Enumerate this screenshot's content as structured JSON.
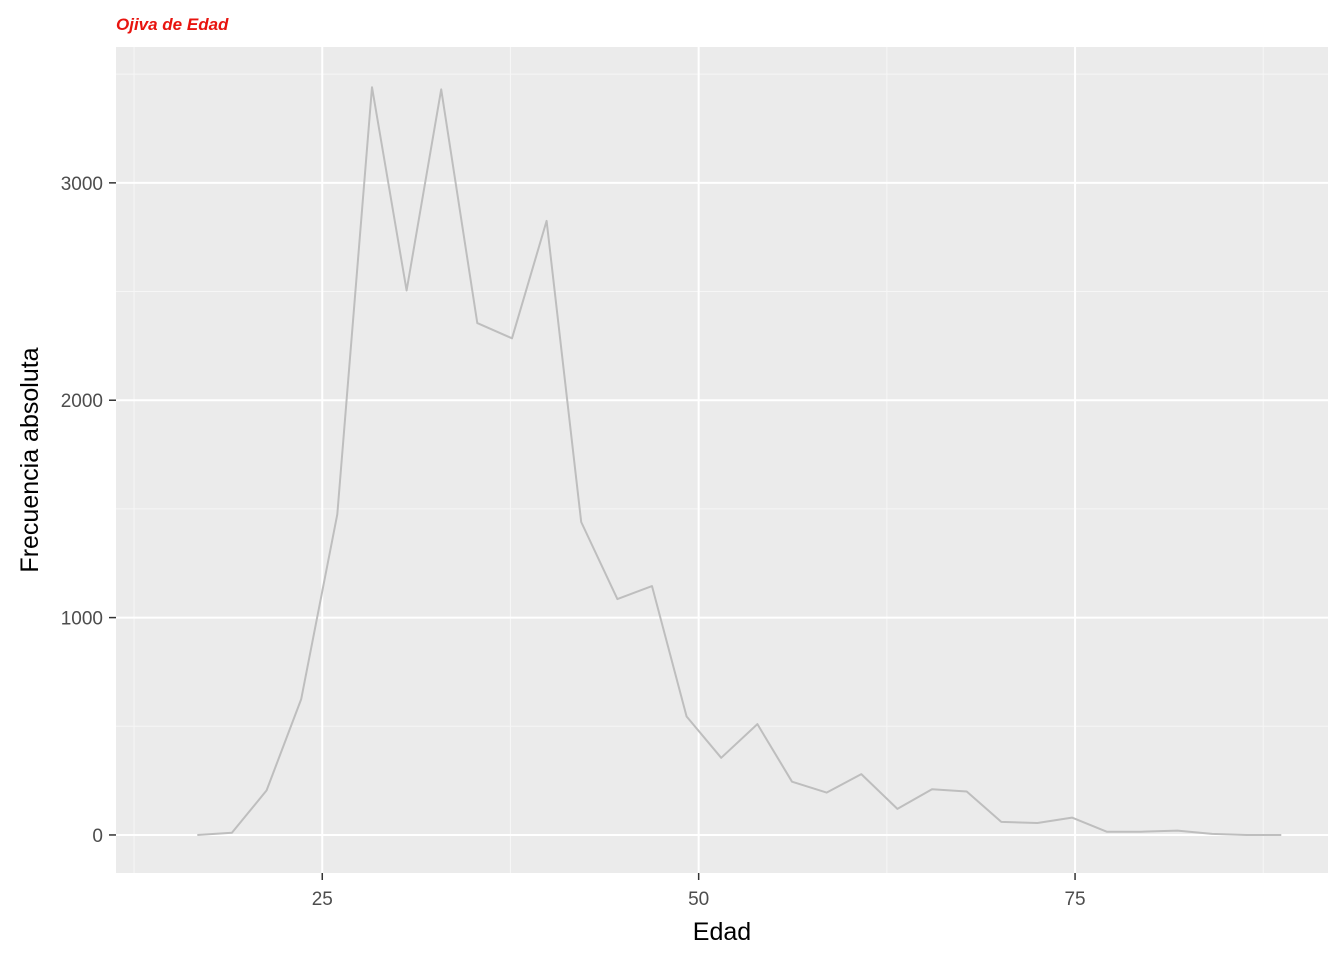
{
  "chart_data": {
    "type": "line",
    "title": "Ojiva de Edad",
    "xlabel": "Edad",
    "ylabel": "Frecuencia absoluta",
    "xlim": [
      11.3,
      91.8
    ],
    "ylim": [
      -175,
      3625
    ],
    "x_ticks": [
      25,
      50,
      75
    ],
    "y_ticks": [
      0,
      1000,
      2000,
      3000
    ],
    "x_tick_labels": [
      "25",
      "50",
      "75"
    ],
    "y_tick_labels": [
      "0",
      "1000",
      "2000",
      "3000"
    ],
    "grid": true,
    "legend": "none",
    "series": [
      {
        "x": [
          16.7,
          19.0,
          21.3,
          23.6,
          26.0,
          28.3,
          30.6,
          32.9,
          35.3,
          37.6,
          39.9,
          42.2,
          44.6,
          46.9,
          49.2,
          51.5,
          53.9,
          56.2,
          58.5,
          60.8,
          63.2,
          65.5,
          67.8,
          70.1,
          72.5,
          74.8,
          77.1,
          79.4,
          81.8,
          84.1,
          86.4,
          88.7
        ],
        "values": [
          0,
          10,
          205,
          625,
          1475,
          3440,
          2505,
          3430,
          2355,
          2285,
          2825,
          1440,
          1085,
          1145,
          545,
          355,
          510,
          245,
          195,
          280,
          120,
          210,
          200,
          60,
          55,
          80,
          15,
          15,
          20,
          5,
          0,
          0
        ]
      }
    ]
  },
  "colors": {
    "title": "#e8140f",
    "line": "#bebebe",
    "panel": "#ebebeb",
    "grid_major": "#ffffff",
    "grid_minor": "#f6f6f6",
    "tick": "#333333"
  }
}
